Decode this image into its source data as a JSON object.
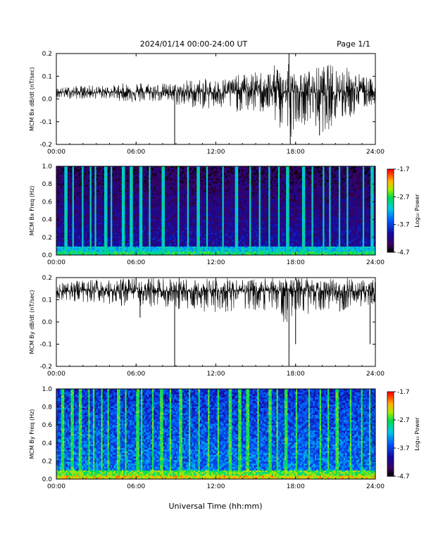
{
  "header": {
    "title": "2024/01/14  00:00-24:00 UT",
    "page": "Page 1/1"
  },
  "footer": {
    "xlabel": "Universal Time (hh:mm)"
  },
  "colorbar": {
    "label": "Log₁₀ Power",
    "ticks": [
      "-1.7",
      "-2.7",
      "-3.7",
      "-4.7"
    ],
    "range": [
      -4.7,
      -1.7
    ]
  },
  "chart_data": [
    {
      "type": "line",
      "ylabel": "MCM Bx dB/dt (nT/sec)",
      "xlim": [
        0,
        24
      ],
      "ylim": [
        -0.2,
        0.2
      ],
      "xticks": [
        "00:00",
        "06:00",
        "12:00",
        "18:00",
        "24:00"
      ],
      "yticks": [
        "0.2",
        "0.1",
        "0.0",
        "-0.1",
        "-0.2"
      ],
      "baseline": 0.03,
      "series": [
        {
          "x": [
            0,
            2,
            4,
            6,
            8,
            9,
            10,
            12,
            14,
            16,
            17.5,
            18,
            19,
            20,
            21,
            22,
            24
          ],
          "y": [
            0.03,
            0.03,
            0.03,
            0.03,
            0.03,
            0.03,
            0.03,
            0.03,
            0.04,
            0.04,
            0.03,
            0.03,
            0.03,
            0.03,
            0.03,
            0.04,
            0.03
          ],
          "envelope_upper": [
            0.05,
            0.06,
            0.06,
            0.08,
            0.07,
            0.07,
            0.09,
            0.09,
            0.11,
            0.13,
            0.2,
            0.1,
            0.13,
            0.15,
            0.16,
            0.14,
            0.08
          ],
          "envelope_lower": [
            0.0,
            0.0,
            0.0,
            -0.02,
            -0.01,
            -0.03,
            -0.04,
            -0.05,
            -0.06,
            -0.07,
            -0.2,
            -0.1,
            -0.12,
            -0.15,
            -0.12,
            -0.09,
            -0.02
          ]
        }
      ],
      "spikes": [
        {
          "x": 8.9,
          "y": -0.2
        },
        {
          "x": 17.5,
          "y": 0.2
        },
        {
          "x": 17.6,
          "y": -0.2
        },
        {
          "x": 19.8,
          "y": -0.16
        }
      ]
    },
    {
      "type": "heatmap",
      "ylabel": "MCM Bx Freq (Hz)",
      "xlim": [
        0,
        24
      ],
      "ylim": [
        0.0,
        1.0
      ],
      "xticks": [
        "00:00",
        "06:00",
        "12:00",
        "18:00",
        "24:00"
      ],
      "yticks": [
        "1.0",
        "0.8",
        "0.6",
        "0.4",
        "0.2",
        "0.0"
      ],
      "colorbar_range": [
        -4.7,
        -1.7
      ],
      "bright_columns_hours": [
        0.6,
        1.2,
        1.9,
        2.5,
        2.9,
        3.6,
        4.1,
        4.9,
        5.5,
        6.3,
        7.0,
        7.9,
        9.2,
        9.9,
        10.6,
        11.3,
        12.6,
        13.5,
        14.6,
        15.3,
        16.1,
        16.8,
        17.4,
        18.6,
        19.3,
        20.1,
        20.6,
        21.3,
        22.0,
        23.1,
        23.7
      ]
    },
    {
      "type": "line",
      "ylabel": "MCM By dB/dt (nT/sec)",
      "xlim": [
        0,
        24
      ],
      "ylim": [
        -0.2,
        0.2
      ],
      "xticks": [
        "00:00",
        "06:00",
        "12:00",
        "18:00",
        "24:00"
      ],
      "yticks": [
        "0.2",
        "0.1",
        "0.0",
        "-0.1",
        "-0.2"
      ],
      "baseline": 0.14,
      "series": [
        {
          "x": [
            0,
            2,
            4,
            6,
            8,
            9,
            10,
            12,
            14,
            16,
            17.5,
            18,
            19,
            20,
            21,
            22,
            24
          ],
          "y": [
            0.14,
            0.14,
            0.14,
            0.14,
            0.14,
            0.14,
            0.14,
            0.14,
            0.14,
            0.14,
            0.14,
            0.14,
            0.14,
            0.14,
            0.14,
            0.14,
            0.14
          ],
          "envelope_upper": [
            0.18,
            0.19,
            0.19,
            0.2,
            0.2,
            0.2,
            0.2,
            0.2,
            0.2,
            0.2,
            0.2,
            0.2,
            0.2,
            0.2,
            0.2,
            0.2,
            0.19
          ],
          "envelope_lower": [
            0.1,
            0.09,
            0.08,
            0.06,
            0.07,
            0.05,
            0.05,
            0.04,
            0.05,
            0.04,
            -0.02,
            0.05,
            0.03,
            0.05,
            0.04,
            0.06,
            0.08
          ]
        }
      ],
      "spikes": [
        {
          "x": 8.9,
          "y": -0.2
        },
        {
          "x": 17.5,
          "y": -0.2
        },
        {
          "x": 18.0,
          "y": -0.1
        },
        {
          "x": 23.6,
          "y": -0.1
        },
        {
          "x": 6.3,
          "y": 0.02
        }
      ]
    },
    {
      "type": "heatmap",
      "ylabel": "MCM By Freq (Hz)",
      "xlim": [
        0,
        24
      ],
      "ylim": [
        0.0,
        1.0
      ],
      "xticks": [
        "00:00",
        "06:00",
        "12:00",
        "18:00",
        "24:00"
      ],
      "yticks": [
        "1.0",
        "0.8",
        "0.6",
        "0.4",
        "0.2",
        "0.0"
      ],
      "colorbar_range": [
        -4.7,
        -1.7
      ],
      "bright_columns_hours": [
        0.4,
        1.1,
        1.7,
        2.4,
        2.8,
        3.4,
        3.9,
        4.6,
        5.2,
        6.0,
        6.4,
        7.2,
        7.8,
        8.6,
        9.3,
        10.0,
        10.7,
        11.4,
        12.2,
        13.0,
        13.8,
        14.4,
        15.2,
        16.0,
        16.7,
        17.3,
        18.1,
        19.0,
        19.9,
        20.5,
        21.1,
        22.2,
        23.0,
        23.6
      ]
    }
  ]
}
